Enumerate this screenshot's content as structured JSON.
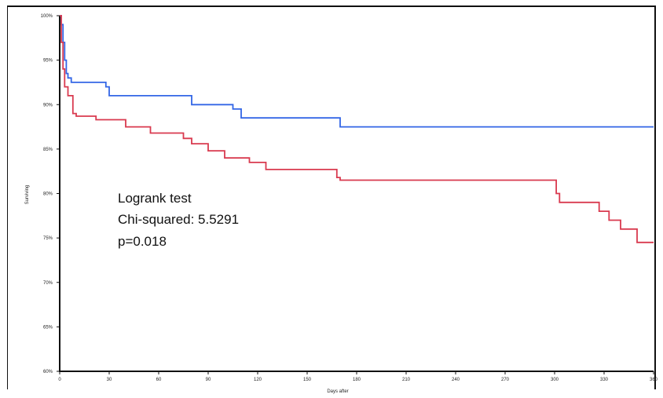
{
  "chart_data": {
    "type": "line",
    "step": true,
    "xlabel": "Days after",
    "ylabel": "Surviving",
    "xlim": [
      0,
      360
    ],
    "ylim": [
      60,
      100
    ],
    "x_ticks": [
      0,
      30,
      60,
      90,
      120,
      150,
      180,
      210,
      240,
      270,
      300,
      330,
      360
    ],
    "y_ticks": [
      60,
      65,
      70,
      75,
      80,
      85,
      90,
      95,
      100
    ],
    "y_tick_labels": [
      "60%",
      "65%",
      "70%",
      "75%",
      "80%",
      "85%",
      "90%",
      "95%",
      "100%"
    ],
    "grid": false,
    "series": [
      {
        "color": "#3366e6",
        "x": [
          0,
          1,
          2,
          3,
          4,
          5,
          7,
          25,
          28,
          30,
          52,
          80,
          100,
          105,
          110,
          170,
          360
        ],
        "y": [
          100,
          99,
          97,
          95,
          93.5,
          93,
          92.5,
          92.5,
          92,
          91,
          91,
          90,
          90,
          89.5,
          88.5,
          87.5,
          87.5
        ]
      },
      {
        "color": "#d93a4f",
        "x": [
          0,
          1,
          2,
          3,
          5,
          8,
          10,
          22,
          40,
          55,
          75,
          80,
          90,
          100,
          115,
          125,
          168,
          170,
          240,
          301,
          303,
          327,
          333,
          340,
          350,
          360
        ],
        "y": [
          100,
          97,
          94,
          92,
          91,
          89,
          88.7,
          88.3,
          87.5,
          86.8,
          86.2,
          85.6,
          84.8,
          84,
          83.5,
          82.7,
          81.8,
          81.5,
          81.5,
          80,
          79,
          78,
          77,
          76,
          74.5,
          74.5
        ]
      }
    ],
    "annotations": [
      "Logrank test",
      "Chi-squared: 5.5291",
      "p=0.018"
    ]
  }
}
